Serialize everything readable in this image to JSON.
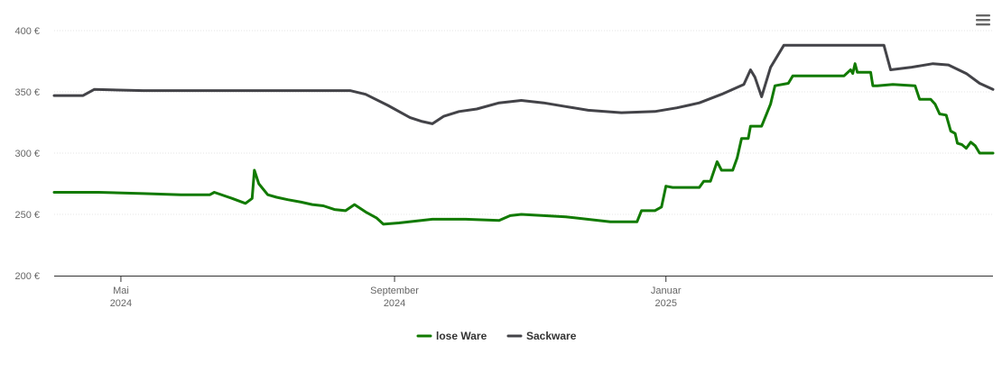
{
  "chart_data": {
    "type": "line",
    "title": "",
    "xlabel": "",
    "ylabel": "",
    "ylim": [
      200,
      400
    ],
    "yticks": [
      200,
      250,
      300,
      350,
      400
    ],
    "y_tick_labels": [
      "200 €",
      "250 €",
      "300 €",
      "350 €",
      "400 €"
    ],
    "x_unit": "days since 2024-04-01",
    "xlim": [
      0,
      422
    ],
    "x_ticks": [
      {
        "x": 30,
        "line1": "Mai",
        "line2": "2024"
      },
      {
        "x": 153,
        "line1": "September",
        "line2": "2024"
      },
      {
        "x": 275,
        "line1": "Januar",
        "line2": "2025"
      }
    ],
    "grid": true,
    "legend": "bottom-center",
    "series": [
      {
        "name": "lose Ware",
        "color": "#117a00",
        "points": [
          [
            0,
            268
          ],
          [
            20,
            268
          ],
          [
            40,
            267
          ],
          [
            57,
            266
          ],
          [
            70,
            266
          ],
          [
            72,
            268
          ],
          [
            80,
            263
          ],
          [
            86,
            259
          ],
          [
            89,
            263
          ],
          [
            90,
            286
          ],
          [
            92,
            275
          ],
          [
            96,
            266
          ],
          [
            100,
            264
          ],
          [
            105,
            262
          ],
          [
            111,
            260
          ],
          [
            116,
            258
          ],
          [
            121,
            257
          ],
          [
            126,
            254
          ],
          [
            131,
            253
          ],
          [
            135,
            258
          ],
          [
            140,
            252
          ],
          [
            145,
            247
          ],
          [
            148,
            242
          ],
          [
            155,
            243
          ],
          [
            170,
            246
          ],
          [
            185,
            246
          ],
          [
            200,
            245
          ],
          [
            205,
            249
          ],
          [
            210,
            250
          ],
          [
            230,
            248
          ],
          [
            250,
            244
          ],
          [
            262,
            244
          ],
          [
            264,
            253
          ],
          [
            270,
            253
          ],
          [
            273,
            256
          ],
          [
            275,
            273
          ],
          [
            278,
            272
          ],
          [
            290,
            272
          ],
          [
            292,
            277
          ],
          [
            295,
            277
          ],
          [
            298,
            293
          ],
          [
            300,
            286
          ],
          [
            305,
            286
          ],
          [
            307,
            296
          ],
          [
            309,
            312
          ],
          [
            312,
            312
          ],
          [
            313,
            322
          ],
          [
            318,
            322
          ],
          [
            322,
            340
          ],
          [
            324,
            355
          ],
          [
            330,
            357
          ],
          [
            332,
            363
          ],
          [
            345,
            363
          ],
          [
            355,
            363
          ],
          [
            358,
            368
          ],
          [
            359,
            365
          ],
          [
            360,
            373
          ],
          [
            361,
            366
          ],
          [
            367,
            366
          ],
          [
            368,
            355
          ],
          [
            370,
            355
          ],
          [
            377,
            356
          ],
          [
            387,
            355
          ],
          [
            389,
            344
          ],
          [
            394,
            344
          ],
          [
            396,
            340
          ],
          [
            398,
            332
          ],
          [
            401,
            331
          ],
          [
            403,
            318
          ],
          [
            405,
            316
          ],
          [
            406,
            308
          ],
          [
            408,
            307
          ],
          [
            410,
            304
          ],
          [
            412,
            309
          ],
          [
            414,
            306
          ],
          [
            416,
            300
          ],
          [
            419,
            300
          ],
          [
            422,
            300
          ]
        ]
      },
      {
        "name": "Sackware",
        "color": "#434348",
        "points": [
          [
            0,
            347
          ],
          [
            13,
            347
          ],
          [
            18,
            352
          ],
          [
            40,
            351
          ],
          [
            60,
            351
          ],
          [
            80,
            351
          ],
          [
            100,
            351
          ],
          [
            120,
            351
          ],
          [
            133,
            351
          ],
          [
            140,
            348
          ],
          [
            150,
            339
          ],
          [
            160,
            329
          ],
          [
            165,
            326
          ],
          [
            170,
            324
          ],
          [
            175,
            330
          ],
          [
            182,
            334
          ],
          [
            190,
            336
          ],
          [
            200,
            341
          ],
          [
            210,
            343
          ],
          [
            220,
            341
          ],
          [
            230,
            338
          ],
          [
            240,
            335
          ],
          [
            255,
            333
          ],
          [
            270,
            334
          ],
          [
            280,
            337
          ],
          [
            290,
            341
          ],
          [
            300,
            348
          ],
          [
            310,
            356
          ],
          [
            313,
            368
          ],
          [
            315,
            362
          ],
          [
            318,
            346
          ],
          [
            322,
            370
          ],
          [
            328,
            388
          ],
          [
            340,
            388
          ],
          [
            360,
            388
          ],
          [
            373,
            388
          ],
          [
            376,
            368
          ],
          [
            385,
            370
          ],
          [
            395,
            373
          ],
          [
            402,
            372
          ],
          [
            410,
            365
          ],
          [
            416,
            357
          ],
          [
            422,
            352
          ]
        ]
      }
    ]
  },
  "menu": {
    "icon": "hamburger-menu-icon"
  }
}
